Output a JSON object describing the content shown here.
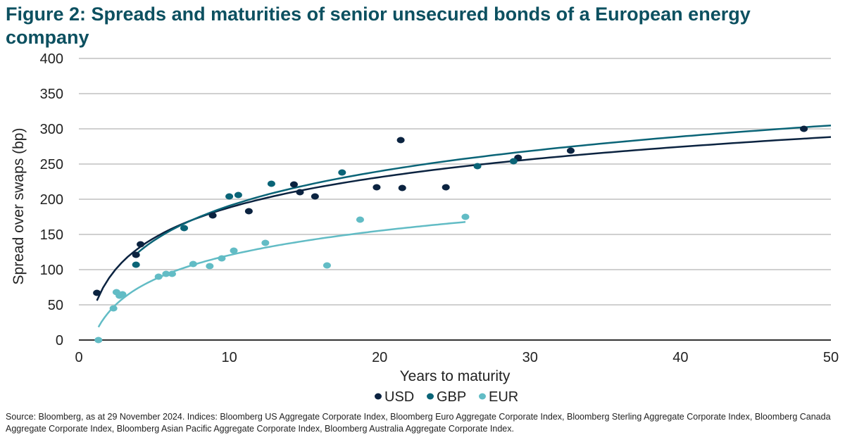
{
  "chart_data": {
    "type": "scatter",
    "title": "Figure 2: Spreads and maturities of senior unsecured bonds of a European energy company",
    "xlabel": "Years to maturity",
    "ylabel": "Spread over swaps (bp)",
    "xlim": [
      0,
      50
    ],
    "ylim": [
      0,
      400
    ],
    "xticks": [
      0,
      10,
      20,
      30,
      40,
      50
    ],
    "yticks": [
      0,
      50,
      100,
      150,
      200,
      250,
      300,
      350,
      400
    ],
    "grid": "horizontal",
    "legend_position": "bottom",
    "series": [
      {
        "name": "USD",
        "color": "#0b2340",
        "points": [
          [
            1.2,
            67
          ],
          [
            3.8,
            121
          ],
          [
            4.1,
            136
          ],
          [
            8.9,
            177
          ],
          [
            11.3,
            183
          ],
          [
            14.3,
            221
          ],
          [
            14.7,
            210
          ],
          [
            15.7,
            204
          ],
          [
            19.8,
            217
          ],
          [
            21.4,
            284
          ],
          [
            21.5,
            216
          ],
          [
            24.4,
            217
          ],
          [
            29.2,
            259
          ],
          [
            32.7,
            269
          ],
          [
            48.2,
            300
          ]
        ],
        "trendline": {
          "type": "logarithmic",
          "x_range": [
            1.2,
            50
          ]
        }
      },
      {
        "name": "GBP",
        "color": "#0a6477",
        "points": [
          [
            3.8,
            107
          ],
          [
            7.0,
            159
          ],
          [
            10.0,
            204
          ],
          [
            10.6,
            206
          ],
          [
            12.8,
            222
          ],
          [
            17.5,
            238
          ],
          [
            26.5,
            247
          ],
          [
            28.9,
            254
          ]
        ],
        "trendline": {
          "type": "logarithmic",
          "x_range": [
            3.8,
            50
          ]
        }
      },
      {
        "name": "EUR",
        "color": "#62bcc5",
        "points": [
          [
            1.3,
            0
          ],
          [
            2.3,
            45
          ],
          [
            2.5,
            68
          ],
          [
            2.7,
            63
          ],
          [
            2.9,
            65
          ],
          [
            5.3,
            90
          ],
          [
            5.8,
            94
          ],
          [
            6.2,
            94
          ],
          [
            7.6,
            108
          ],
          [
            8.7,
            105
          ],
          [
            9.5,
            116
          ],
          [
            10.3,
            127
          ],
          [
            12.4,
            138
          ],
          [
            16.5,
            106
          ],
          [
            18.7,
            171
          ],
          [
            25.7,
            175
          ]
        ],
        "trendline": {
          "type": "logarithmic",
          "x_range": [
            1.3,
            25.7
          ]
        }
      }
    ]
  },
  "source": "Source: Bloomberg, as at 29 November 2024. Indices: Bloomberg US Aggregate Corporate Index, Bloomberg Euro Aggregate Corporate Index, Bloomberg Sterling Aggregate Corporate Index, Bloomberg Canada Aggregate Corporate Index, Bloomberg Asian Pacific Aggregate Corporate Index, Bloomberg Australia Aggregate Corporate Index."
}
